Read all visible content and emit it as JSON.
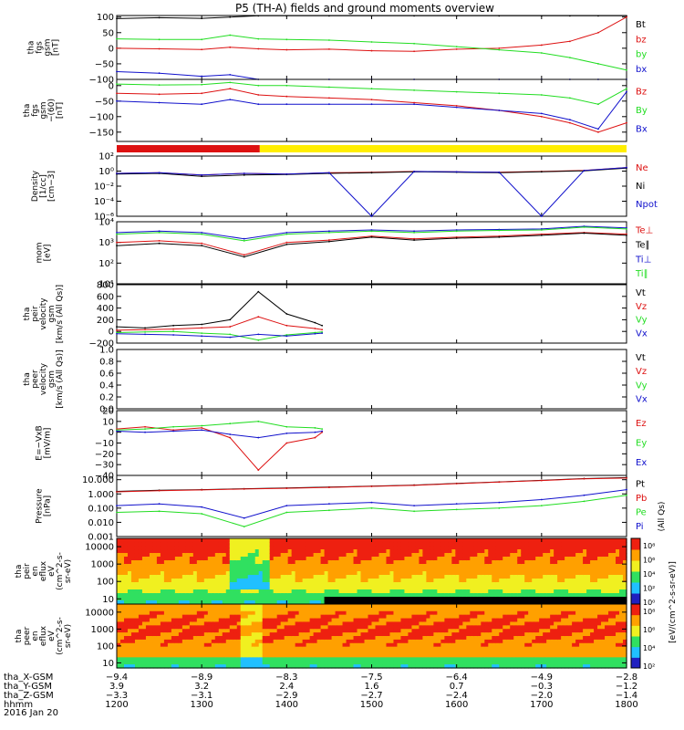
{
  "title": "P5 (TH-A) fields and ground moments overview",
  "date_label": "2016 Jan 20",
  "colors": {
    "black": "#000000",
    "red": "#dd1111",
    "green": "#22dd22",
    "blue": "#1111cc",
    "yellow": "#ffee00"
  },
  "state_bar": {
    "segments": [
      {
        "from": "1200",
        "to": "1341",
        "color": "red"
      },
      {
        "from": "1341",
        "to": "1800",
        "color": "yellow"
      }
    ]
  },
  "chart_data": [
    {
      "type": "line",
      "panel_id": "fgs-gsm",
      "ylabel": [
        "tha",
        "fgs",
        "gsm",
        "[nT]"
      ],
      "ylim": [
        -100,
        105
      ],
      "yticks": [
        "100",
        "50",
        "0",
        "−50",
        "−100"
      ],
      "ytick_values": [
        100,
        50,
        0,
        -50,
        -100
      ],
      "x": [
        "1200",
        "1230",
        "1300",
        "1320",
        "1340",
        "1400",
        "1430",
        "1500",
        "1530",
        "1600",
        "1630",
        "1700",
        "1720",
        "1740",
        "1800"
      ],
      "series": [
        {
          "name": "Bt",
          "color": "black",
          "values": [
            95,
            98,
            96,
            100,
            104,
            104,
            104,
            104,
            104,
            104,
            104,
            104,
            104,
            104,
            104
          ]
        },
        {
          "name": "bz",
          "color": "red",
          "values": [
            0,
            -2,
            -4,
            3,
            -2,
            -5,
            -3,
            -8,
            -10,
            -3,
            0,
            10,
            22,
            50,
            100
          ]
        },
        {
          "name": "by",
          "color": "green",
          "values": [
            30,
            28,
            28,
            42,
            30,
            28,
            26,
            20,
            15,
            5,
            -5,
            -15,
            -30,
            -50,
            -70
          ]
        },
        {
          "name": "bx",
          "color": "blue",
          "values": [
            -75,
            -80,
            -90,
            -85,
            -100,
            -100,
            -100,
            -100,
            -100,
            -100,
            -100,
            -100,
            -100,
            -100,
            -100
          ]
        }
      ],
      "legend": [
        "Bt",
        "bz",
        "by",
        "bx"
      ]
    },
    {
      "type": "line",
      "panel_id": "fgs-gse",
      "ylabel": [
        "tha",
        "fgs",
        "gsm",
        "−(60)",
        "[nT]"
      ],
      "ylim": [
        -180,
        20
      ],
      "yticks": [
        "0",
        "−50",
        "−100",
        "−150"
      ],
      "ytick_values": [
        0,
        -50,
        -100,
        -150
      ],
      "x": [
        "1200",
        "1230",
        "1300",
        "1320",
        "1340",
        "1400",
        "1430",
        "1500",
        "1530",
        "1600",
        "1630",
        "1700",
        "1720",
        "1740",
        "1800"
      ],
      "series": [
        {
          "name": "Bz",
          "color": "red",
          "values": [
            -25,
            -28,
            -25,
            -10,
            -30,
            -35,
            -40,
            -45,
            -55,
            -65,
            -80,
            -100,
            -120,
            -150,
            -120
          ]
        },
        {
          "name": "By",
          "color": "green",
          "values": [
            5,
            2,
            3,
            10,
            0,
            0,
            -5,
            -10,
            -15,
            -20,
            -25,
            -30,
            -40,
            -60,
            -10
          ]
        },
        {
          "name": "Bx",
          "color": "blue",
          "values": [
            -50,
            -55,
            -60,
            -45,
            -60,
            -60,
            -60,
            -60,
            -60,
            -70,
            -80,
            -90,
            -110,
            -140,
            -20
          ]
        }
      ],
      "legend": [
        "Bz",
        "By",
        "Bx"
      ]
    },
    {
      "type": "line",
      "panel_id": "density",
      "ylabel": [
        "Density",
        "[1/cc]",
        "[cm−3]"
      ],
      "yscale": "log",
      "ylim": [
        1e-06,
        100
      ],
      "yticks": [
        "10²",
        "10⁰",
        "10⁻²",
        "10⁻⁴",
        "10⁻⁶"
      ],
      "ytick_values": [
        100,
        1,
        0.01,
        0.0001,
        1e-06
      ],
      "x": [
        "1200",
        "1230",
        "1300",
        "1330",
        "1400",
        "1430",
        "1500",
        "1530",
        "1600",
        "1630",
        "1700",
        "1730",
        "1800"
      ],
      "series": [
        {
          "name": "Ne",
          "color": "red",
          "values": [
            0.5,
            0.6,
            0.3,
            0.5,
            0.4,
            0.6,
            0.7,
            0.9,
            0.8,
            0.7,
            0.9,
            1.2,
            3
          ]
        },
        {
          "name": "Ni",
          "color": "black",
          "values": [
            0.4,
            0.5,
            0.2,
            0.3,
            0.35,
            0.5,
            0.6,
            0.8,
            0.7,
            0.6,
            0.8,
            1.1,
            2.5
          ]
        },
        {
          "name": "Npot",
          "color": "blue",
          "values": [
            0.5,
            0.6,
            0.3,
            0.5,
            0.4,
            0.6,
            1e-06,
            0.9,
            0.8,
            0.7,
            1e-06,
            1.2,
            3
          ]
        }
      ],
      "legend": [
        "Ne",
        "Ni",
        "Npot"
      ]
    },
    {
      "type": "line",
      "panel_id": "temperature",
      "ylabel": [
        "mom",
        "[eV]"
      ],
      "yscale": "log",
      "ylim": [
        10,
        10000
      ],
      "yticks": [
        "10⁴",
        "10³",
        "10²",
        "10¹"
      ],
      "ytick_values": [
        10000,
        1000,
        100,
        10
      ],
      "x": [
        "1200",
        "1230",
        "1300",
        "1330",
        "1400",
        "1430",
        "1500",
        "1530",
        "1600",
        "1630",
        "1700",
        "1730",
        "1800"
      ],
      "series": [
        {
          "name": "Te⊥",
          "color": "red",
          "values": [
            1000,
            1200,
            900,
            250,
            1000,
            1300,
            2000,
            1500,
            1800,
            2000,
            2500,
            3000,
            2500
          ]
        },
        {
          "name": "Te∥",
          "color": "black",
          "values": [
            700,
            900,
            700,
            200,
            800,
            1100,
            1800,
            1300,
            1600,
            1800,
            2200,
            2800,
            2200
          ]
        },
        {
          "name": "Ti⊥",
          "color": "blue",
          "values": [
            3000,
            3500,
            3000,
            1500,
            3000,
            3500,
            4000,
            3500,
            4000,
            4200,
            4500,
            6000,
            5000
          ]
        },
        {
          "name": "Ti∥",
          "color": "green",
          "values": [
            2500,
            3000,
            2500,
            1200,
            2500,
            3000,
            3500,
            3000,
            3500,
            3800,
            4000,
            5500,
            4500
          ]
        }
      ],
      "legend": [
        "Te⊥",
        "Te∥",
        "Ti⊥",
        "Ti∥"
      ]
    },
    {
      "type": "line",
      "panel_id": "peir-velocity",
      "ylabel": [
        "tha",
        "peir",
        "velocity",
        "gsm",
        "[km/s (All Qs)]"
      ],
      "ylim": [
        -200,
        800
      ],
      "yticks": [
        "800",
        "600",
        "400",
        "200",
        "0",
        "−200"
      ],
      "ytick_values": [
        800,
        600,
        400,
        200,
        0,
        -200
      ],
      "x": [
        "1200",
        "1220",
        "1240",
        "1300",
        "1320",
        "1340",
        "1400",
        "1420",
        "1425"
      ],
      "series": [
        {
          "name": "Vt",
          "color": "black",
          "values": [
            80,
            60,
            100,
            120,
            200,
            680,
            300,
            150,
            100
          ]
        },
        {
          "name": "Vz",
          "color": "red",
          "values": [
            20,
            30,
            40,
            60,
            80,
            250,
            100,
            50,
            30
          ]
        },
        {
          "name": "Vy",
          "color": "green",
          "values": [
            -20,
            -10,
            0,
            -30,
            -50,
            -150,
            -60,
            -20,
            -10
          ]
        },
        {
          "name": "Vx",
          "color": "blue",
          "values": [
            -40,
            -50,
            -60,
            -80,
            -100,
            -50,
            -80,
            -40,
            -30
          ]
        }
      ],
      "legend": [
        "Vt",
        "Vz",
        "Vy",
        "Vx"
      ]
    },
    {
      "type": "line",
      "panel_id": "peer-velocity",
      "ylabel": [
        "tha",
        "peer",
        "velocity",
        "gsm",
        "[km/s (All Qs)]"
      ],
      "ylim": [
        0,
        1
      ],
      "yticks": [
        "1.0",
        "0.8",
        "0.6",
        "0.4",
        "0.2",
        "0.0"
      ],
      "ytick_values": [
        1,
        0.8,
        0.6,
        0.4,
        0.2,
        0
      ],
      "series": [],
      "legend": [
        "Vt",
        "Vz",
        "Vy",
        "Vx"
      ]
    },
    {
      "type": "line",
      "panel_id": "efield",
      "ylabel": [
        "E=−VxB",
        "[mV/m]"
      ],
      "ylim": [
        -40,
        20
      ],
      "yticks": [
        "20",
        "10",
        "0",
        "−10",
        "−20",
        "−30",
        "−40"
      ],
      "ytick_values": [
        20,
        10,
        0,
        -10,
        -20,
        -30,
        -40
      ],
      "x": [
        "1200",
        "1220",
        "1240",
        "1300",
        "1320",
        "1340",
        "1400",
        "1420",
        "1425"
      ],
      "series": [
        {
          "name": "Ez",
          "color": "red",
          "values": [
            3,
            5,
            2,
            4,
            -5,
            -35,
            -10,
            -5,
            0
          ]
        },
        {
          "name": "Ey",
          "color": "green",
          "values": [
            2,
            3,
            5,
            6,
            8,
            10,
            5,
            4,
            3
          ]
        },
        {
          "name": "Ex",
          "color": "blue",
          "values": [
            1,
            0,
            1,
            2,
            -2,
            -5,
            -1,
            0,
            1
          ]
        }
      ],
      "legend": [
        "Ez",
        "Ey",
        "Ex"
      ]
    },
    {
      "type": "line",
      "panel_id": "pressure",
      "ylabel": [
        "Pressure",
        "[nPa]"
      ],
      "yscale": "log",
      "ylim": [
        0.001,
        20
      ],
      "yticks": [
        "10.000",
        "1.000",
        "0.100",
        "0.010",
        "0.001"
      ],
      "ytick_values": [
        10,
        1,
        0.1,
        0.01,
        0.001
      ],
      "x": [
        "1200",
        "1230",
        "1300",
        "1330",
        "1400",
        "1430",
        "1500",
        "1530",
        "1600",
        "1630",
        "1700",
        "1730",
        "1800"
      ],
      "series": [
        {
          "name": "Pt",
          "color": "black",
          "values": [
            1.5,
            1.8,
            2,
            2.3,
            2.6,
            3,
            3.5,
            4.2,
            5.5,
            7,
            9,
            12,
            14
          ]
        },
        {
          "name": "Pb",
          "color": "red",
          "values": [
            1.4,
            1.7,
            1.9,
            2.2,
            2.5,
            2.9,
            3.4,
            4,
            5.3,
            6.8,
            8.8,
            11.5,
            13
          ]
        },
        {
          "name": "Pe",
          "color": "green",
          "values": [
            0.05,
            0.06,
            0.04,
            0.005,
            0.05,
            0.07,
            0.1,
            0.06,
            0.08,
            0.1,
            0.15,
            0.3,
            0.8
          ]
        },
        {
          "name": "Pi",
          "color": "blue",
          "values": [
            0.15,
            0.2,
            0.12,
            0.02,
            0.15,
            0.2,
            0.25,
            0.15,
            0.2,
            0.25,
            0.4,
            0.8,
            2
          ]
        }
      ],
      "legend": [
        "Pt",
        "Pb",
        "Pe",
        "Pi"
      ]
    },
    {
      "type": "heatmap",
      "panel_id": "peir-en-eflux",
      "ylabel": [
        "tha",
        "peir",
        "en",
        "eflux",
        "eV",
        "(cm^2-s-",
        "sr-eV)"
      ],
      "yscale": "log",
      "ylim": [
        5,
        30000
      ],
      "yticks": [
        "10000",
        "1000",
        "100",
        "10"
      ],
      "ytick_values": [
        10000,
        1000,
        100,
        10
      ],
      "colorbar_ticks": [
        "10⁸",
        "10⁶",
        "10⁴",
        "10²",
        "10⁰"
      ]
    },
    {
      "type": "heatmap",
      "panel_id": "peer-en-eflux",
      "ylabel": [
        "tha",
        "peer",
        "en",
        "eflux",
        "eV",
        "(cm^2-s-",
        "sr-eV)"
      ],
      "yscale": "log",
      "ylim": [
        5,
        30000
      ],
      "yticks": [
        "10000",
        "1000",
        "100",
        "10"
      ],
      "ytick_values": [
        10000,
        1000,
        100,
        10
      ],
      "colorbar_ticks": [
        "10⁸",
        "10⁶",
        "10⁴",
        "10²"
      ]
    }
  ],
  "pressure_right_label": "(All Qs)",
  "colorbar_label": "[eV/(cm^2-s-sr-eV)]",
  "footer": {
    "row_labels": [
      "tha_X-GSM",
      "tha_Y-GSM",
      "tha_Z-GSM",
      "hhmm"
    ],
    "columns": [
      {
        "x_gsm": "−9.4",
        "y_gsm": "3.9",
        "z_gsm": "−3.3",
        "hhmm": "1200"
      },
      {
        "x_gsm": "−8.9",
        "y_gsm": "3.2",
        "z_gsm": "−3.1",
        "hhmm": "1300"
      },
      {
        "x_gsm": "−8.3",
        "y_gsm": "2.4",
        "z_gsm": "−2.9",
        "hhmm": "1400"
      },
      {
        "x_gsm": "−7.5",
        "y_gsm": "1.6",
        "z_gsm": "−2.7",
        "hhmm": "1500"
      },
      {
        "x_gsm": "−6.4",
        "y_gsm": "0.7",
        "z_gsm": "−2.4",
        "hhmm": "1600"
      },
      {
        "x_gsm": "−4.9",
        "y_gsm": "−0.3",
        "z_gsm": "−2.0",
        "hhmm": "1700"
      },
      {
        "x_gsm": "−2.8",
        "y_gsm": "−1.2",
        "z_gsm": "−1.4",
        "hhmm": "1800"
      }
    ]
  }
}
